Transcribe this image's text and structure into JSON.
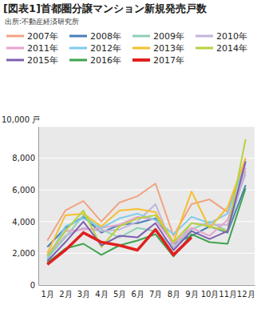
{
  "chart_data": {
    "type": "line",
    "title": "[図表1]首都圏分譲マンション新規発売戸数",
    "subtitle": "出所:不動産経済研究所",
    "categories": [
      "1月",
      "2月",
      "3月",
      "4月",
      "5月",
      "6月",
      "7月",
      "8月",
      "9月",
      "10月",
      "11月",
      "12月"
    ],
    "ylim": [
      0,
      10000
    ],
    "yticks": [
      0,
      {
        "value": 2000,
        "label": "2,000"
      },
      {
        "value": 4000,
        "label": "4,000"
      },
      {
        "value": 6000,
        "label": "6,000"
      },
      {
        "value": 8000,
        "label": "8,000"
      },
      {
        "value": 10000,
        "label": "10,000 戸"
      }
    ],
    "grid": true,
    "legend": "top",
    "series": [
      {
        "name": "2007年",
        "color": "#f0a482",
        "values": [
          2800,
          4700,
          5300,
          4000,
          5200,
          5600,
          6400,
          3100,
          5100,
          5400,
          4600,
          8000
        ]
      },
      {
        "name": "2008年",
        "color": "#4a7fb5",
        "values": [
          2400,
          3600,
          4300,
          3300,
          3800,
          3900,
          4200,
          2600,
          3100,
          3700,
          3300,
          6300
        ]
      },
      {
        "name": "2009年",
        "color": "#8ed0b6",
        "values": [
          1700,
          3000,
          4400,
          3500,
          3000,
          3600,
          3400,
          2400,
          3500,
          4000,
          3400,
          7200
        ]
      },
      {
        "name": "2010年",
        "color": "#c2b4da",
        "values": [
          1800,
          3100,
          3600,
          3400,
          3500,
          4000,
          5100,
          2300,
          3900,
          3800,
          3800,
          7000
        ]
      },
      {
        "name": "2011年",
        "color": "#e8a2cc",
        "values": [
          1900,
          3400,
          3500,
          3600,
          3800,
          4300,
          4100,
          2600,
          3600,
          3100,
          4100,
          7400
        ]
      },
      {
        "name": "2012年",
        "color": "#7fcbea",
        "values": [
          1600,
          3700,
          4200,
          3600,
          4200,
          4500,
          4100,
          3200,
          4300,
          3900,
          4500,
          7700
        ]
      },
      {
        "name": "2013年",
        "color": "#f5bf2e",
        "values": [
          2000,
          4400,
          4500,
          3700,
          4700,
          4800,
          4600,
          2700,
          5900,
          3600,
          4900,
          8000
        ]
      },
      {
        "name": "2014年",
        "color": "#b7d23e",
        "values": [
          1800,
          3400,
          4700,
          2400,
          3700,
          4200,
          4400,
          2700,
          3900,
          3700,
          3400,
          9200
        ]
      },
      {
        "name": "2015年",
        "color": "#7d5fb0",
        "values": [
          1500,
          2700,
          4000,
          2500,
          3100,
          3000,
          3900,
          2200,
          3400,
          2900,
          3400,
          7800
        ]
      },
      {
        "name": "2016年",
        "color": "#3fa34d",
        "values": [
          1400,
          2300,
          2600,
          1900,
          2500,
          2800,
          3200,
          1800,
          3200,
          2700,
          2600,
          6100
        ]
      },
      {
        "name": "2017年",
        "color": "#e0201e",
        "values": [
          1300,
          2200,
          3300,
          2700,
          2500,
          2200,
          3500,
          1900,
          3000,
          null,
          null,
          null
        ]
      }
    ]
  }
}
